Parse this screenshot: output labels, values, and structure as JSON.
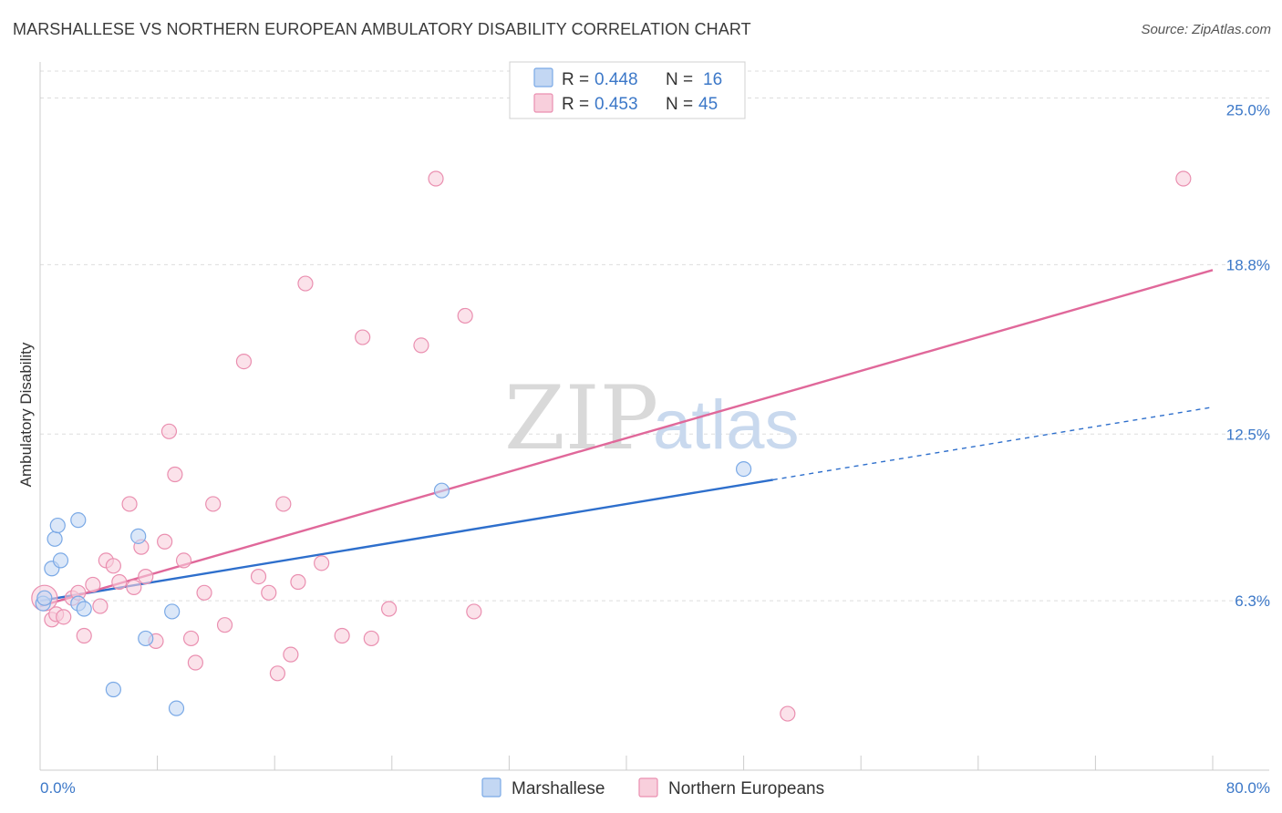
{
  "title": "MARSHALLESE VS NORTHERN EUROPEAN AMBULATORY DISABILITY CORRELATION CHART",
  "source": "Source: ZipAtlas.com",
  "watermark": {
    "zip": "ZIP",
    "atlas": "atlas"
  },
  "colors": {
    "blue": "#7aa9e6",
    "blue_fill": "#c3d7f3",
    "blue_line": "#2e6fcc",
    "pink": "#ea8fb0",
    "pink_fill": "#f8cfdc",
    "pink_line": "#e0689a",
    "tick_label": "#3c78c8",
    "grid": "#dddddd"
  },
  "legend": {
    "rows": [
      {
        "r_label": "R = ",
        "r_value": "0.448",
        "n_label": "N = ",
        "n_value": "16",
        "series": "blue"
      },
      {
        "r_label": "R = ",
        "r_value": "0.453",
        "n_label": "N = ",
        "n_value": "45",
        "series": "pink"
      }
    ]
  },
  "bottom_legend": [
    "Marshallese",
    "Northern Europeans"
  ],
  "chart_data": {
    "type": "scatter",
    "xlabel": "",
    "ylabel": "Ambulatory Disability",
    "xlim": [
      0,
      80
    ],
    "ylim": [
      0,
      26
    ],
    "x_tick_labels": [
      "0.0%",
      "80.0%"
    ],
    "y_ticks": [
      6.3,
      12.5,
      18.8,
      25.0
    ],
    "y_tick_labels": [
      "6.3%",
      "12.5%",
      "18.8%",
      "25.0%"
    ],
    "grid": true,
    "series": [
      {
        "name": "Marshallese",
        "color": "blue",
        "points": [
          [
            0.2,
            6.2
          ],
          [
            0.8,
            7.5
          ],
          [
            1.0,
            8.6
          ],
          [
            1.2,
            9.1
          ],
          [
            1.4,
            7.8
          ],
          [
            2.6,
            6.2
          ],
          [
            2.6,
            9.3
          ],
          [
            3.0,
            6.0
          ],
          [
            5.0,
            3.0
          ],
          [
            6.7,
            8.7
          ],
          [
            7.2,
            4.9
          ],
          [
            9.0,
            5.9
          ],
          [
            9.3,
            2.3
          ],
          [
            27.4,
            10.4
          ],
          [
            48.0,
            11.2
          ],
          [
            0.3,
            6.4
          ]
        ],
        "trend": {
          "solid": [
            [
              0,
              6.3
            ],
            [
              50,
              10.8
            ]
          ],
          "dashed": [
            [
              50,
              10.8
            ],
            [
              80,
              13.5
            ]
          ]
        }
      },
      {
        "name": "Northern Europeans",
        "color": "pink",
        "points": [
          [
            0.3,
            6.4
          ],
          [
            0.8,
            5.6
          ],
          [
            1.1,
            5.8
          ],
          [
            1.6,
            5.7
          ],
          [
            2.2,
            6.4
          ],
          [
            2.6,
            6.6
          ],
          [
            3.0,
            5.0
          ],
          [
            3.6,
            6.9
          ],
          [
            4.1,
            6.1
          ],
          [
            4.5,
            7.8
          ],
          [
            5.0,
            7.6
          ],
          [
            5.4,
            7.0
          ],
          [
            6.1,
            9.9
          ],
          [
            6.4,
            6.8
          ],
          [
            6.9,
            8.3
          ],
          [
            7.2,
            7.2
          ],
          [
            7.9,
            4.8
          ],
          [
            8.5,
            8.5
          ],
          [
            8.8,
            12.6
          ],
          [
            9.2,
            11.0
          ],
          [
            9.8,
            7.8
          ],
          [
            10.3,
            4.9
          ],
          [
            10.6,
            4.0
          ],
          [
            11.2,
            6.6
          ],
          [
            11.8,
            9.9
          ],
          [
            12.6,
            5.4
          ],
          [
            13.9,
            15.2
          ],
          [
            14.9,
            7.2
          ],
          [
            15.6,
            6.6
          ],
          [
            16.2,
            3.6
          ],
          [
            16.6,
            9.9
          ],
          [
            17.1,
            4.3
          ],
          [
            17.6,
            7.0
          ],
          [
            18.1,
            18.1
          ],
          [
            19.2,
            7.7
          ],
          [
            20.6,
            5.0
          ],
          [
            22.0,
            16.1
          ],
          [
            22.6,
            4.9
          ],
          [
            23.8,
            6.0
          ],
          [
            26.0,
            15.8
          ],
          [
            27.0,
            22.0
          ],
          [
            29.0,
            16.9
          ],
          [
            29.6,
            5.9
          ],
          [
            51.0,
            2.1
          ],
          [
            78.0,
            22.0
          ]
        ],
        "trend": {
          "solid": [
            [
              0,
              6.1
            ],
            [
              80,
              18.6
            ]
          ]
        }
      }
    ]
  }
}
